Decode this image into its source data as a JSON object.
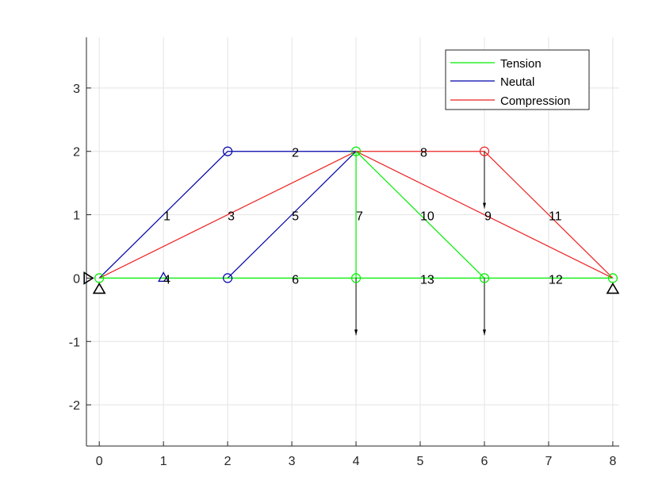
{
  "chart_data": {
    "type": "truss-diagram",
    "xlim": [
      -0.2,
      8.1
    ],
    "ylim": [
      -2.65,
      3.8
    ],
    "x_ticks": [
      0,
      1,
      2,
      3,
      4,
      5,
      6,
      7,
      8
    ],
    "y_ticks": [
      -2,
      -1,
      0,
      1,
      2,
      3
    ],
    "grid": true,
    "legend": {
      "placement": "top-right",
      "entries": [
        {
          "label": "Tension",
          "color": "#00ee00"
        },
        {
          "label": "Neutal",
          "color": "#0000aa"
        },
        {
          "label": "Compression",
          "color": "#ee2222"
        }
      ]
    },
    "colors": {
      "tension": "#00ee00",
      "neutral": "#0000aa",
      "compression": "#ee2222",
      "grid": "#e3e3e3",
      "axis": "#262626"
    },
    "nodes": [
      {
        "id": 1,
        "x": 0,
        "y": 0,
        "state": "tension"
      },
      {
        "id": 2,
        "x": 2,
        "y": 2,
        "state": "neutral"
      },
      {
        "id": 3,
        "x": 2,
        "y": 0,
        "state": "neutral"
      },
      {
        "id": 4,
        "x": 4,
        "y": 2,
        "state": "tension"
      },
      {
        "id": 5,
        "x": 4,
        "y": 0,
        "state": "tension"
      },
      {
        "id": 6,
        "x": 6,
        "y": 2,
        "state": "compression"
      },
      {
        "id": 7,
        "x": 6,
        "y": 0,
        "state": "tension"
      },
      {
        "id": 8,
        "x": 8,
        "y": 0,
        "state": "tension"
      }
    ],
    "members": [
      {
        "label": "1",
        "x1": 0,
        "y1": 0,
        "x2": 2,
        "y2": 2,
        "state": "neutral"
      },
      {
        "label": "2",
        "x1": 2,
        "y1": 2,
        "x2": 4,
        "y2": 2,
        "state": "neutral"
      },
      {
        "label": "3",
        "x1": 0,
        "y1": 0,
        "x2": 4,
        "y2": 2,
        "state": "compression"
      },
      {
        "label": "4",
        "x1": 0,
        "y1": 0,
        "x2": 2,
        "y2": 0,
        "state": "tension"
      },
      {
        "label": "5",
        "x1": 2,
        "y1": 0,
        "x2": 4,
        "y2": 2,
        "state": "neutral"
      },
      {
        "label": "6",
        "x1": 2,
        "y1": 0,
        "x2": 4,
        "y2": 0,
        "state": "tension"
      },
      {
        "label": "7",
        "x1": 4,
        "y1": 0,
        "x2": 4,
        "y2": 2,
        "state": "tension"
      },
      {
        "label": "8",
        "x1": 4,
        "y1": 2,
        "x2": 6,
        "y2": 2,
        "state": "compression"
      },
      {
        "label": "9",
        "x1": 4,
        "y1": 2,
        "x2": 8,
        "y2": 0,
        "state": "compression"
      },
      {
        "label": "10",
        "x1": 4,
        "y1": 2,
        "x2": 6,
        "y2": 0,
        "state": "tension"
      },
      {
        "label": "11",
        "x1": 6,
        "y1": 2,
        "x2": 8,
        "y2": 0,
        "state": "compression"
      },
      {
        "label": "12",
        "x1": 6,
        "y1": 0,
        "x2": 8,
        "y2": 0,
        "state": "tension"
      },
      {
        "label": "13",
        "x1": 4,
        "y1": 0,
        "x2": 6,
        "y2": 0,
        "state": "tension"
      }
    ],
    "loads": [
      {
        "x": 4,
        "y": 0,
        "dx": 0,
        "dy": -0.9
      },
      {
        "x": 6,
        "y": 0,
        "dx": 0,
        "dy": -0.9
      },
      {
        "x": 6,
        "y": 2,
        "dx": 0,
        "dy": -0.9
      }
    ],
    "supports": [
      {
        "x": 0,
        "y": 0,
        "type": "pin"
      },
      {
        "x": 8,
        "y": 0,
        "type": "pin"
      },
      {
        "x": 0,
        "y": 0,
        "type": "horizontal-restraint"
      },
      {
        "x": 1,
        "y": 0,
        "type": "marker",
        "state": "neutral"
      }
    ]
  }
}
